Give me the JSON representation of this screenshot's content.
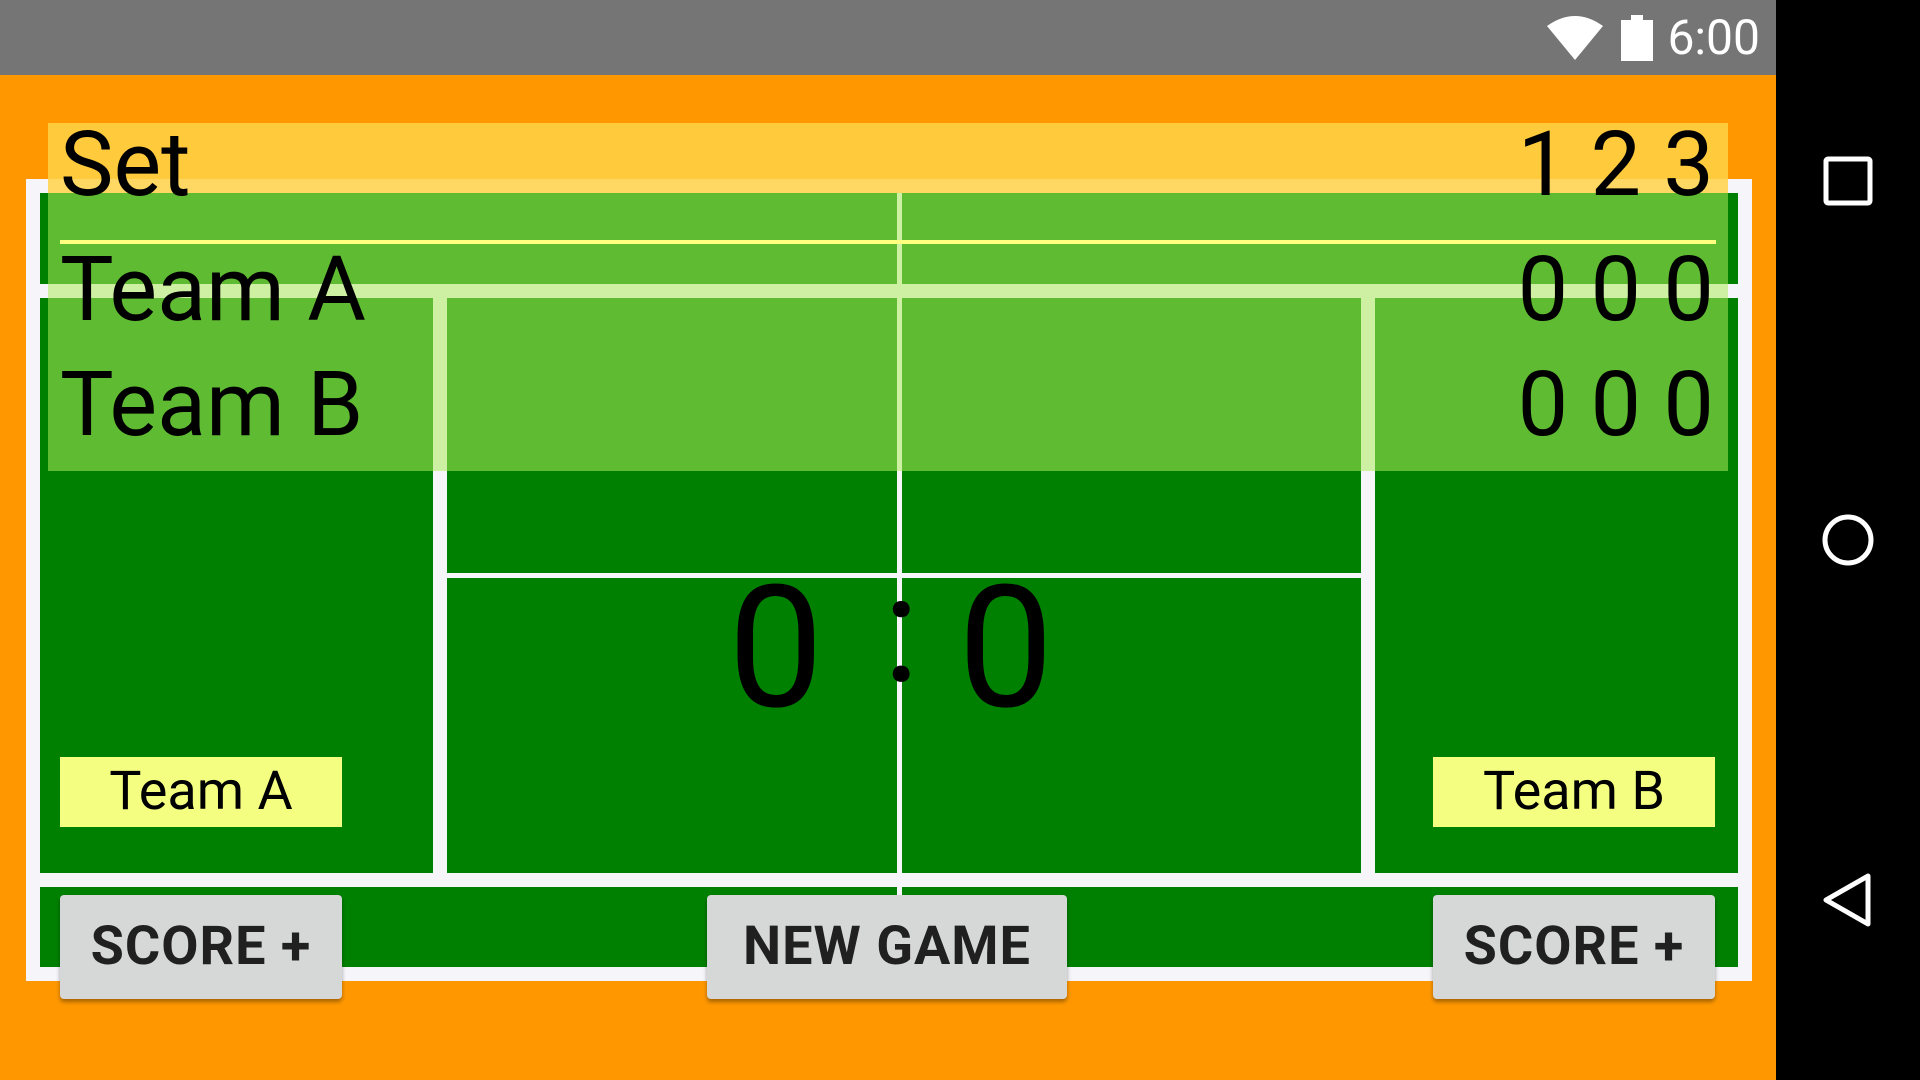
{
  "status_bar": {
    "time": "6:00"
  },
  "nav_bar": {
    "recents_icon": "square-icon",
    "home_icon": "circle-icon",
    "back_icon": "triangle-icon"
  },
  "scoreboard": {
    "set_label": "Set",
    "set_numbers": "1 2 3",
    "rows": [
      {
        "team": "Team A",
        "scores": "0 0 0"
      },
      {
        "team": "Team B",
        "scores": "0 0 0"
      }
    ]
  },
  "points": {
    "team_a": "0",
    "separator": ":",
    "team_b": "0"
  },
  "team_labels": {
    "left": "Team A",
    "right": "Team B"
  },
  "buttons": {
    "score_a": "SCORE +",
    "new_game": "NEW GAME",
    "score_b": "SCORE +"
  },
  "colors": {
    "background": "#ff9800",
    "court": "#008000",
    "court_lines": "#f5f5fa",
    "set_header": "#fdd046",
    "team_tag": "#f4ff81",
    "button": "#d6d7d7"
  }
}
